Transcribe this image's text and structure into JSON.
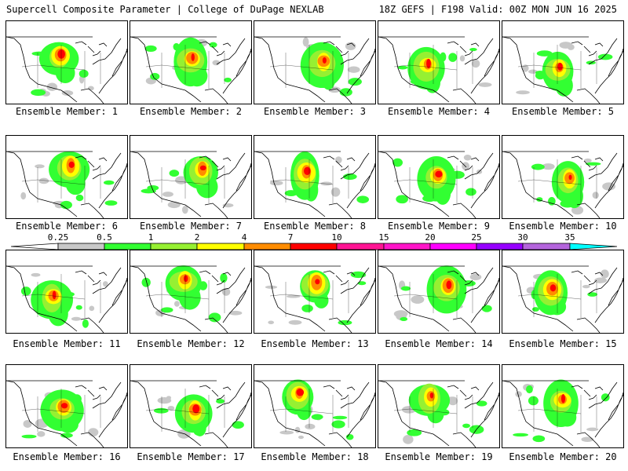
{
  "header": {
    "title": "Supercell Composite Parameter | College of DuPage NEXLAB",
    "valid": "18Z GEFS | F198 Valid: 00Z MON JUN 16 2025"
  },
  "colorbar": {
    "ticks": [
      "0.25",
      "0.5",
      "1",
      "2",
      "4",
      "7",
      "10",
      "15",
      "20",
      "25",
      "30",
      "35"
    ],
    "colors": [
      "#c8c8c8",
      "#32ff32",
      "#96f032",
      "#ffff00",
      "#ff8c00",
      "#ff0000",
      "#ff1493",
      "#ff14c8",
      "#ff00ff",
      "#9600ff",
      "#b464dc",
      "#00ffff"
    ]
  },
  "panels": [
    {
      "label": "Ensemble Member: 1"
    },
    {
      "label": "Ensemble Member: 2"
    },
    {
      "label": "Ensemble Member: 3"
    },
    {
      "label": "Ensemble Member: 4"
    },
    {
      "label": "Ensemble Member: 5"
    },
    {
      "label": "Ensemble Member: 6"
    },
    {
      "label": "Ensemble Member: 7"
    },
    {
      "label": "Ensemble Member: 8"
    },
    {
      "label": "Ensemble Member: 9"
    },
    {
      "label": "Ensemble Member: 10"
    },
    {
      "label": "Ensemble Member: 11"
    },
    {
      "label": "Ensemble Member: 12"
    },
    {
      "label": "Ensemble Member: 13"
    },
    {
      "label": "Ensemble Member: 14"
    },
    {
      "label": "Ensemble Member: 15"
    },
    {
      "label": "Ensemble Member: 16"
    },
    {
      "label": "Ensemble Member: 17"
    },
    {
      "label": "Ensemble Member: 18"
    },
    {
      "label": "Ensemble Member: 19"
    },
    {
      "label": "Ensemble Member: 20"
    }
  ]
}
